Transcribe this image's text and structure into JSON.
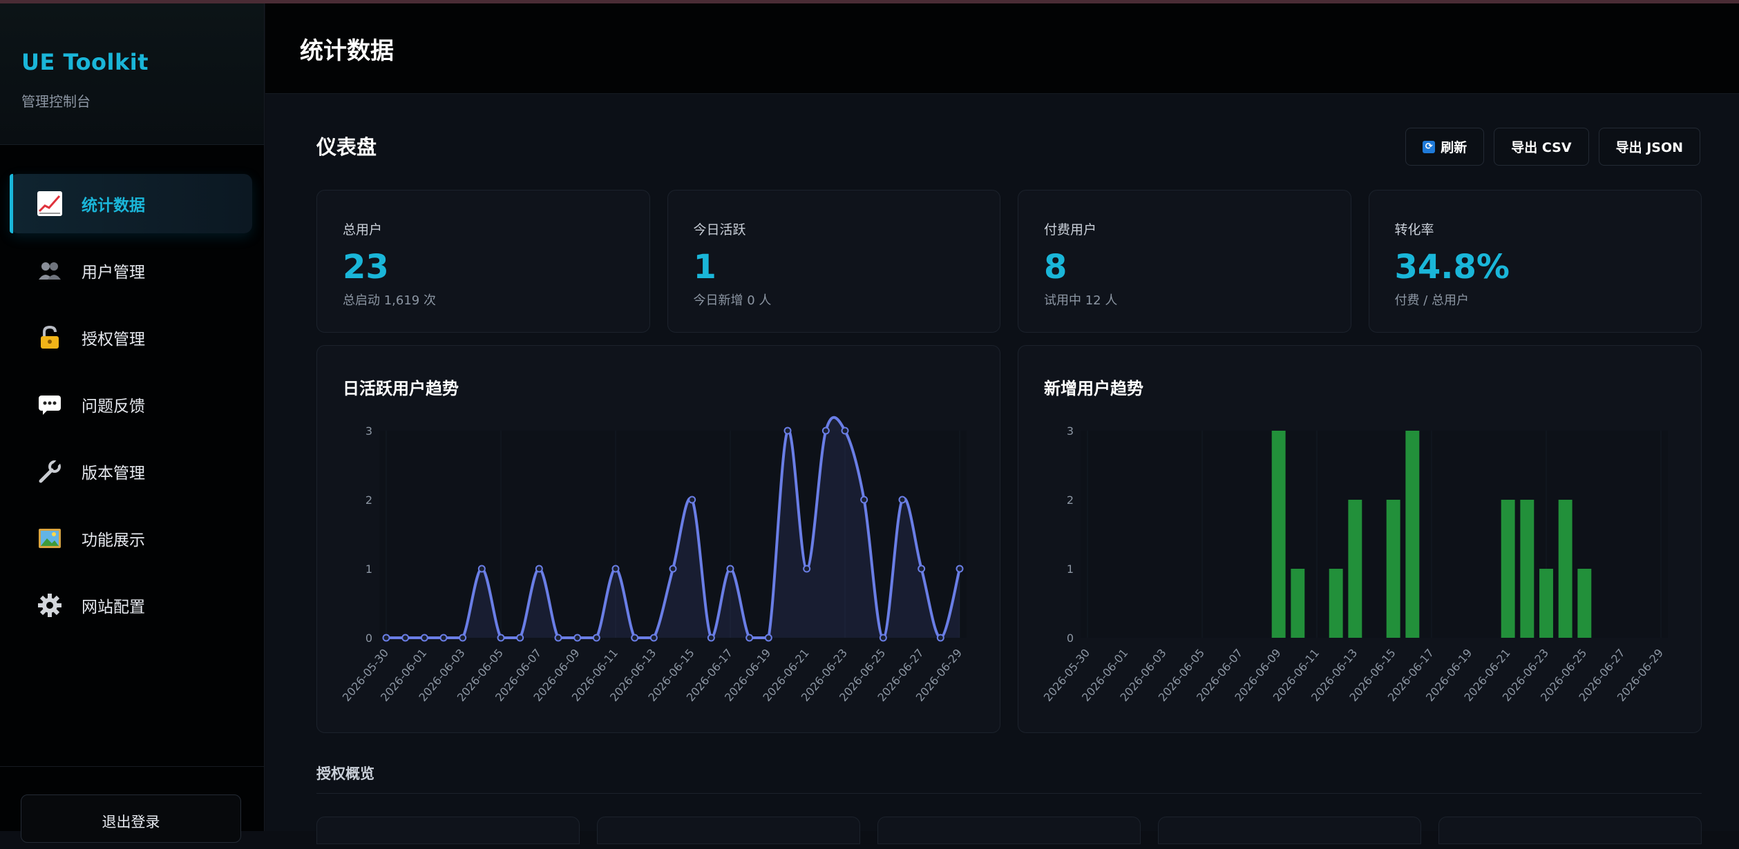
{
  "sidebar": {
    "brand_title": "UE Toolkit",
    "brand_subtitle": "管理控制台",
    "items": [
      {
        "label": "统计数据",
        "icon": "chart-icon",
        "active": true
      },
      {
        "label": "用户管理",
        "icon": "users-icon"
      },
      {
        "label": "授权管理",
        "icon": "lock-icon"
      },
      {
        "label": "问题反馈",
        "icon": "chat-icon"
      },
      {
        "label": "版本管理",
        "icon": "wrench-icon"
      },
      {
        "label": "功能展示",
        "icon": "picture-icon"
      },
      {
        "label": "网站配置",
        "icon": "gear-icon"
      }
    ],
    "logout_label": "退出登录"
  },
  "header": {
    "title": "统计数据"
  },
  "dashboard": {
    "title": "仪表盘",
    "actions": {
      "refresh": "刷新",
      "export_csv": "导出 CSV",
      "export_json": "导出 JSON"
    },
    "stats": [
      {
        "label": "总用户",
        "value": "23",
        "sub": "总启动 1,619 次"
      },
      {
        "label": "今日活跃",
        "value": "1",
        "sub": "今日新增 0 人"
      },
      {
        "label": "付费用户",
        "value": "8",
        "sub": "试用中 12 人"
      },
      {
        "label": "转化率",
        "value": "34.8%",
        "sub": "付费 / 总用户"
      }
    ]
  },
  "colors": {
    "accent": "#1ab6d9",
    "line": "#6a7ee6",
    "bar": "#22903a"
  },
  "chart_data": [
    {
      "type": "line",
      "title": "日活跃用户趋势",
      "x": [
        "2026-05-30",
        "2026-05-31",
        "2026-06-01",
        "2026-06-02",
        "2026-06-03",
        "2026-06-04",
        "2026-06-05",
        "2026-06-06",
        "2026-06-07",
        "2026-06-08",
        "2026-06-09",
        "2026-06-10",
        "2026-06-11",
        "2026-06-12",
        "2026-06-13",
        "2026-06-14",
        "2026-06-15",
        "2026-06-16",
        "2026-06-17",
        "2026-06-18",
        "2026-06-19",
        "2026-06-20",
        "2026-06-21",
        "2026-06-22",
        "2026-06-23",
        "2026-06-24",
        "2026-06-25",
        "2026-06-26",
        "2026-06-27",
        "2026-06-28",
        "2026-06-29"
      ],
      "tick_labels": [
        "2026-05-30",
        "2026-06-01",
        "2026-06-03",
        "2026-06-05",
        "2026-06-07",
        "2026-06-09",
        "2026-06-11",
        "2026-06-13",
        "2026-06-15",
        "2026-06-17",
        "2026-06-19",
        "2026-06-21",
        "2026-06-23",
        "2026-06-25",
        "2026-06-27",
        "2026-06-29"
      ],
      "values": [
        0,
        0,
        0,
        0,
        0,
        1,
        0,
        0,
        1,
        0,
        0,
        0,
        1,
        0,
        0,
        1,
        2,
        0,
        1,
        0,
        0,
        3,
        1,
        3,
        3,
        2,
        0,
        2,
        1,
        0,
        1
      ],
      "ylim": [
        0,
        3
      ],
      "yticks": [
        0,
        1,
        2,
        3
      ],
      "grid": true
    },
    {
      "type": "bar",
      "title": "新增用户趋势",
      "x": [
        "2026-05-30",
        "2026-05-31",
        "2026-06-01",
        "2026-06-02",
        "2026-06-03",
        "2026-06-04",
        "2026-06-05",
        "2026-06-06",
        "2026-06-07",
        "2026-06-08",
        "2026-06-09",
        "2026-06-10",
        "2026-06-11",
        "2026-06-12",
        "2026-06-13",
        "2026-06-14",
        "2026-06-15",
        "2026-06-16",
        "2026-06-17",
        "2026-06-18",
        "2026-06-19",
        "2026-06-20",
        "2026-06-21",
        "2026-06-22",
        "2026-06-23",
        "2026-06-24",
        "2026-06-25",
        "2026-06-26",
        "2026-06-27",
        "2026-06-28",
        "2026-06-29"
      ],
      "tick_labels": [
        "2026-05-30",
        "2026-06-01",
        "2026-06-03",
        "2026-06-05",
        "2026-06-07",
        "2026-06-09",
        "2026-06-11",
        "2026-06-13",
        "2026-06-15",
        "2026-06-17",
        "2026-06-19",
        "2026-06-21",
        "2026-06-23",
        "2026-06-25",
        "2026-06-27",
        "2026-06-29"
      ],
      "values": [
        0,
        0,
        0,
        0,
        0,
        0,
        0,
        0,
        0,
        0,
        3,
        1,
        0,
        1,
        2,
        0,
        2,
        3,
        0,
        0,
        0,
        0,
        2,
        2,
        1,
        2,
        1,
        0,
        0,
        0,
        0
      ],
      "ylim": [
        0,
        3
      ],
      "yticks": [
        0,
        1,
        2,
        3
      ],
      "grid": true
    }
  ],
  "license_overview": {
    "title": "授权概览"
  }
}
